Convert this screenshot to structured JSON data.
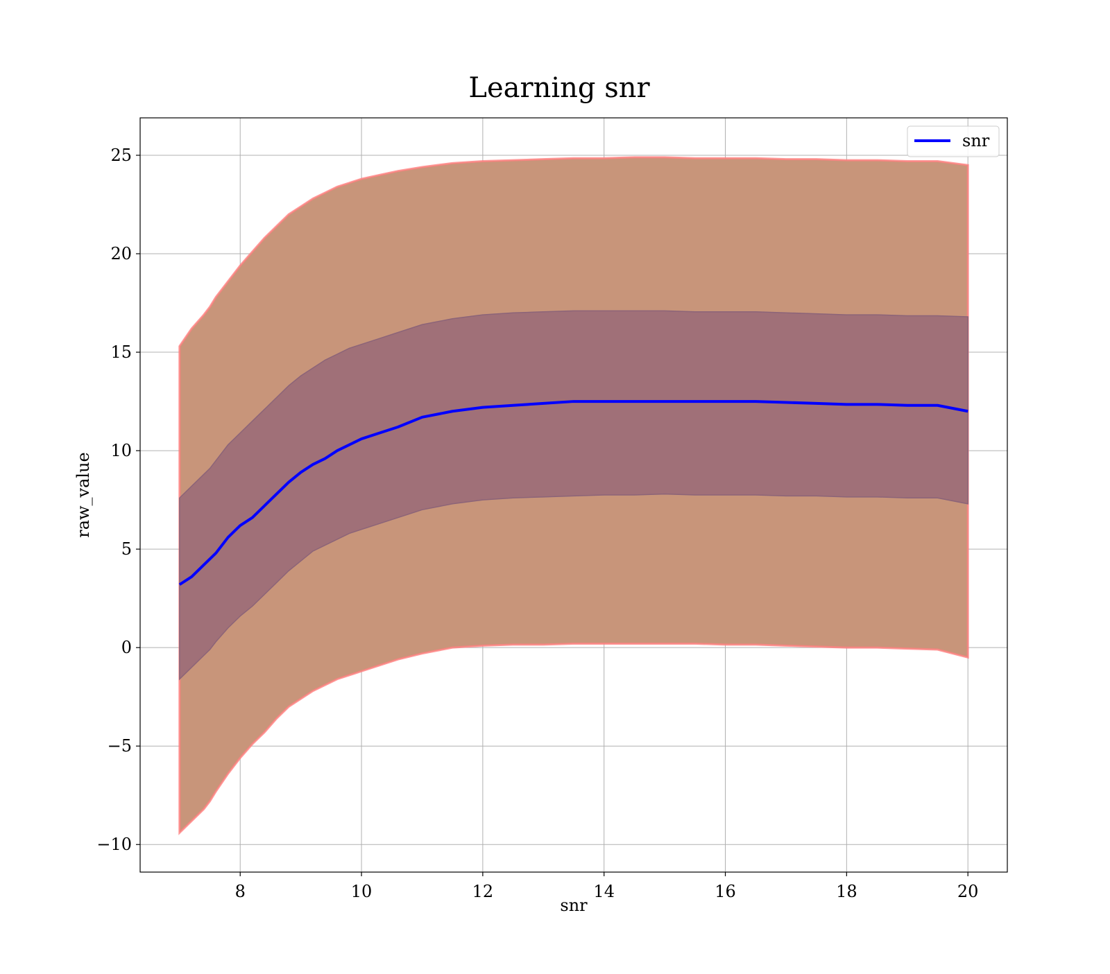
{
  "chart_data": {
    "type": "area",
    "title": "Learning snr",
    "xlabel": "snr",
    "ylabel": "raw_value",
    "xlim": [
      6.35,
      20.65
    ],
    "ylim": [
      -11.4,
      26.9
    ],
    "x_ticks": [
      8,
      10,
      12,
      14,
      16,
      18,
      20
    ],
    "x_tick_labels": [
      "8",
      "10",
      "12",
      "14",
      "16",
      "18",
      "20"
    ],
    "y_ticks": [
      -10,
      -5,
      0,
      5,
      10,
      15,
      20,
      25
    ],
    "y_tick_labels": [
      "−10",
      "−5",
      "0",
      "5",
      "10",
      "15",
      "20",
      "25"
    ],
    "grid": true,
    "legend": {
      "position": "top-right",
      "entries": [
        "snr"
      ]
    },
    "colors": {
      "line": "#0000ff",
      "outer_band": "#c8957a",
      "outer_band_edge": "#ff8080",
      "inner_band": "#a07078",
      "grid": "#b0b0b0"
    },
    "series": [
      {
        "name": "snr",
        "x": [
          7.0,
          7.2,
          7.4,
          7.5,
          7.6,
          7.8,
          8.0,
          8.2,
          8.4,
          8.6,
          8.8,
          9.0,
          9.2,
          9.4,
          9.6,
          9.8,
          10.0,
          10.3,
          10.6,
          11.0,
          11.5,
          12.0,
          12.5,
          13.0,
          13.5,
          14.0,
          14.5,
          15.0,
          15.5,
          16.0,
          16.5,
          17.0,
          17.5,
          18.0,
          18.5,
          19.0,
          19.5,
          20.0
        ],
        "mean": [
          3.2,
          3.6,
          4.2,
          4.5,
          4.8,
          5.6,
          6.2,
          6.6,
          7.2,
          7.8,
          8.4,
          8.9,
          9.3,
          9.6,
          10.0,
          10.3,
          10.6,
          10.9,
          11.2,
          11.7,
          12.0,
          12.2,
          12.3,
          12.4,
          12.5,
          12.5,
          12.5,
          12.5,
          12.5,
          12.5,
          12.5,
          12.45,
          12.4,
          12.35,
          12.35,
          12.3,
          12.3,
          12.0
        ],
        "inner_upper": [
          7.6,
          8.2,
          8.8,
          9.1,
          9.5,
          10.3,
          10.9,
          11.5,
          12.1,
          12.7,
          13.3,
          13.8,
          14.2,
          14.6,
          14.9,
          15.2,
          15.4,
          15.7,
          16.0,
          16.4,
          16.7,
          16.9,
          17.0,
          17.05,
          17.1,
          17.1,
          17.1,
          17.1,
          17.05,
          17.05,
          17.05,
          17.0,
          16.95,
          16.9,
          16.9,
          16.85,
          16.85,
          16.8
        ],
        "inner_lower": [
          -1.6,
          -1.0,
          -0.4,
          -0.1,
          0.3,
          1.0,
          1.6,
          2.1,
          2.7,
          3.3,
          3.9,
          4.4,
          4.9,
          5.2,
          5.5,
          5.8,
          6.0,
          6.3,
          6.6,
          7.0,
          7.3,
          7.5,
          7.6,
          7.65,
          7.7,
          7.75,
          7.75,
          7.8,
          7.75,
          7.75,
          7.75,
          7.7,
          7.7,
          7.65,
          7.65,
          7.6,
          7.6,
          7.3
        ],
        "outer_upper": [
          15.3,
          16.2,
          16.9,
          17.3,
          17.8,
          18.6,
          19.4,
          20.1,
          20.8,
          21.4,
          22.0,
          22.4,
          22.8,
          23.1,
          23.4,
          23.6,
          23.8,
          24.0,
          24.2,
          24.4,
          24.6,
          24.7,
          24.75,
          24.8,
          24.85,
          24.85,
          24.9,
          24.9,
          24.85,
          24.85,
          24.85,
          24.8,
          24.8,
          24.75,
          24.75,
          24.7,
          24.7,
          24.5
        ],
        "outer_lower": [
          -9.4,
          -8.8,
          -8.2,
          -7.8,
          -7.3,
          -6.4,
          -5.6,
          -4.9,
          -4.3,
          -3.6,
          -3.0,
          -2.6,
          -2.2,
          -1.9,
          -1.6,
          -1.4,
          -1.2,
          -0.9,
          -0.6,
          -0.3,
          0.0,
          0.1,
          0.15,
          0.15,
          0.2,
          0.2,
          0.2,
          0.2,
          0.2,
          0.15,
          0.15,
          0.1,
          0.05,
          0.0,
          0.0,
          -0.05,
          -0.1,
          -0.5
        ]
      }
    ]
  }
}
